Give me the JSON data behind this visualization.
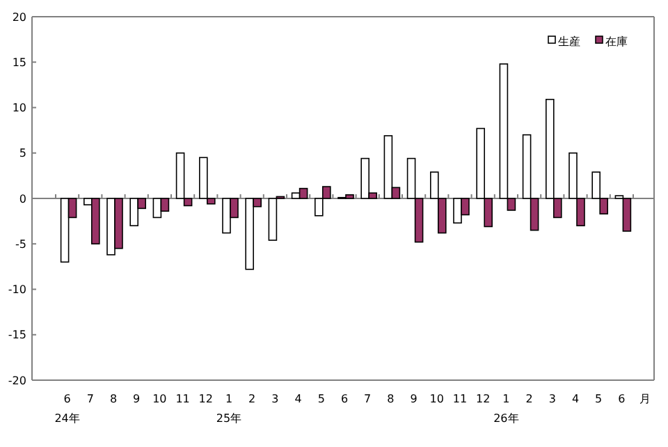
{
  "chart_data": {
    "type": "bar",
    "categories": [
      "6\n24年",
      "7",
      "8",
      "9",
      "10",
      "11",
      "12",
      "1\n25年",
      "2",
      "3",
      "4",
      "5",
      "6",
      "7",
      "8",
      "9",
      "10",
      "11",
      "12",
      "1\n26年",
      "2",
      "3",
      "4",
      "5",
      "6"
    ],
    "xlabel": "月",
    "series": [
      {
        "name": "生産",
        "color": "#ffffff",
        "values": [
          -7.0,
          -0.7,
          -6.2,
          -3.0,
          -2.1,
          5.0,
          4.5,
          -3.8,
          -7.8,
          -4.6,
          0.6,
          -1.9,
          0.1,
          4.4,
          6.9,
          4.4,
          2.9,
          -2.7,
          7.7,
          14.8,
          7.0,
          10.9,
          5.0,
          2.9,
          0.3
        ]
      },
      {
        "name": "在庫",
        "color": "#993366",
        "values": [
          -2.1,
          -5.0,
          -5.5,
          -1.1,
          -1.4,
          -0.8,
          -0.6,
          -2.1,
          -0.9,
          0.2,
          1.1,
          1.3,
          0.4,
          0.6,
          1.2,
          -4.8,
          -3.8,
          -1.8,
          -3.1,
          -1.3,
          -3.5,
          -2.1,
          -3.0,
          -1.7,
          -3.6
        ]
      }
    ],
    "ylim": [
      -20,
      20
    ],
    "yticks": [
      20,
      15,
      10,
      5,
      0,
      -5,
      -10,
      -15,
      -20
    ],
    "legend": "top right"
  }
}
